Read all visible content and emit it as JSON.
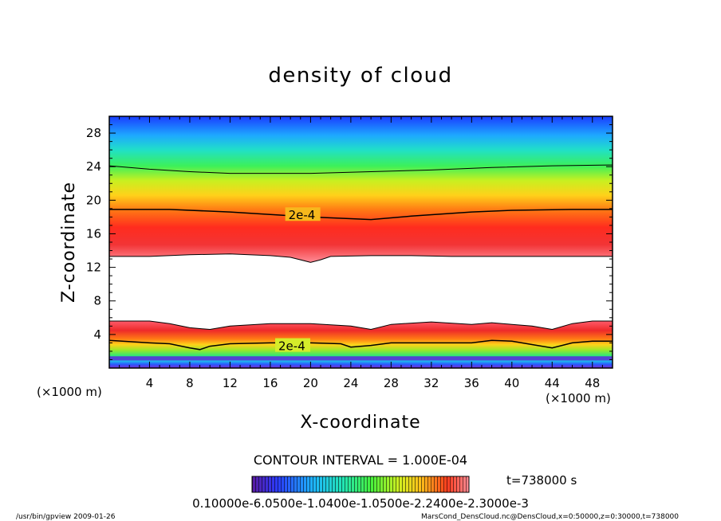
{
  "chart_data": {
    "type": "heatmap",
    "title": "density of cloud",
    "xlabel": "X-coordinate",
    "ylabel": "Z-coordinate",
    "x_unit_left": "(×1000 m)",
    "x_unit_right": "(×1000 m)",
    "xlim": [
      0,
      50
    ],
    "ylim": [
      0,
      30
    ],
    "x_ticks": [
      4,
      8,
      12,
      16,
      20,
      24,
      28,
      32,
      36,
      40,
      44,
      48
    ],
    "y_ticks": [
      4,
      8,
      12,
      16,
      20,
      24,
      28
    ],
    "contour_interval_text": "CONTOUR INTERVAL = 1.000E-04",
    "time_text": "t=738000 s",
    "colorbar_label_text": "0.10000e-6.0500e-1.0400e-1.0500e-2.2400e-2.3000e-3",
    "upper_band": {
      "bottom": [
        [
          0,
          13.3
        ],
        [
          4,
          13.3
        ],
        [
          8,
          13.5
        ],
        [
          12,
          13.6
        ],
        [
          16,
          13.4
        ],
        [
          18,
          13.2
        ],
        [
          20,
          12.6
        ],
        [
          21,
          12.9
        ],
        [
          22,
          13.3
        ],
        [
          26,
          13.4
        ],
        [
          30,
          13.4
        ],
        [
          34,
          13.3
        ],
        [
          40,
          13.3
        ],
        [
          44,
          13.3
        ],
        [
          50,
          13.3
        ]
      ],
      "contour_2e4": [
        [
          0,
          18.9
        ],
        [
          6,
          18.9
        ],
        [
          12,
          18.6
        ],
        [
          16,
          18.3
        ],
        [
          20,
          18.0
        ],
        [
          24,
          17.8
        ],
        [
          26,
          17.7
        ],
        [
          30,
          18.1
        ],
        [
          36,
          18.6
        ],
        [
          40,
          18.8
        ],
        [
          46,
          18.9
        ],
        [
          50,
          18.9
        ]
      ],
      "contour_upper": [
        [
          0,
          24.1
        ],
        [
          4,
          23.7
        ],
        [
          8,
          23.4
        ],
        [
          12,
          23.2
        ],
        [
          20,
          23.2
        ],
        [
          26,
          23.4
        ],
        [
          32,
          23.6
        ],
        [
          38,
          23.9
        ],
        [
          44,
          24.1
        ],
        [
          50,
          24.2
        ]
      ],
      "contour_labels": [
        {
          "text": "2e-4",
          "x": 17.8,
          "y": 18.3
        }
      ]
    },
    "lower_band": {
      "top": [
        [
          0,
          5.6
        ],
        [
          4,
          5.6
        ],
        [
          6,
          5.3
        ],
        [
          8,
          4.8
        ],
        [
          10,
          4.6
        ],
        [
          12,
          5.0
        ],
        [
          16,
          5.3
        ],
        [
          20,
          5.3
        ],
        [
          24,
          5.0
        ],
        [
          26,
          4.6
        ],
        [
          28,
          5.2
        ],
        [
          32,
          5.5
        ],
        [
          36,
          5.2
        ],
        [
          38,
          5.4
        ],
        [
          40,
          5.2
        ],
        [
          42,
          5.0
        ],
        [
          44,
          4.6
        ],
        [
          46,
          5.3
        ],
        [
          48,
          5.6
        ],
        [
          50,
          5.6
        ]
      ],
      "contour_2e4": [
        [
          0,
          3.3
        ],
        [
          4,
          3.0
        ],
        [
          6,
          2.9
        ],
        [
          8,
          2.4
        ],
        [
          9,
          2.2
        ],
        [
          10,
          2.6
        ],
        [
          12,
          2.9
        ],
        [
          16,
          3.0
        ],
        [
          20,
          3.0
        ],
        [
          23,
          2.9
        ],
        [
          24,
          2.5
        ],
        [
          26,
          2.7
        ],
        [
          28,
          3.0
        ],
        [
          32,
          3.0
        ],
        [
          36,
          3.0
        ],
        [
          38,
          3.3
        ],
        [
          40,
          3.2
        ],
        [
          42,
          2.8
        ],
        [
          44,
          2.4
        ],
        [
          46,
          3.0
        ],
        [
          48,
          3.2
        ],
        [
          50,
          3.2
        ]
      ],
      "contour_labels": [
        {
          "text": "2e-4",
          "x": 16.8,
          "y": 2.7
        }
      ]
    },
    "grid": false,
    "legend": "none"
  },
  "footer": {
    "left": "/usr/bin/gpview   2009-01-26",
    "right": "MarsCond_DensCloud.nc@DensCloud,x=0:50000,z=0:30000,t=738000"
  }
}
